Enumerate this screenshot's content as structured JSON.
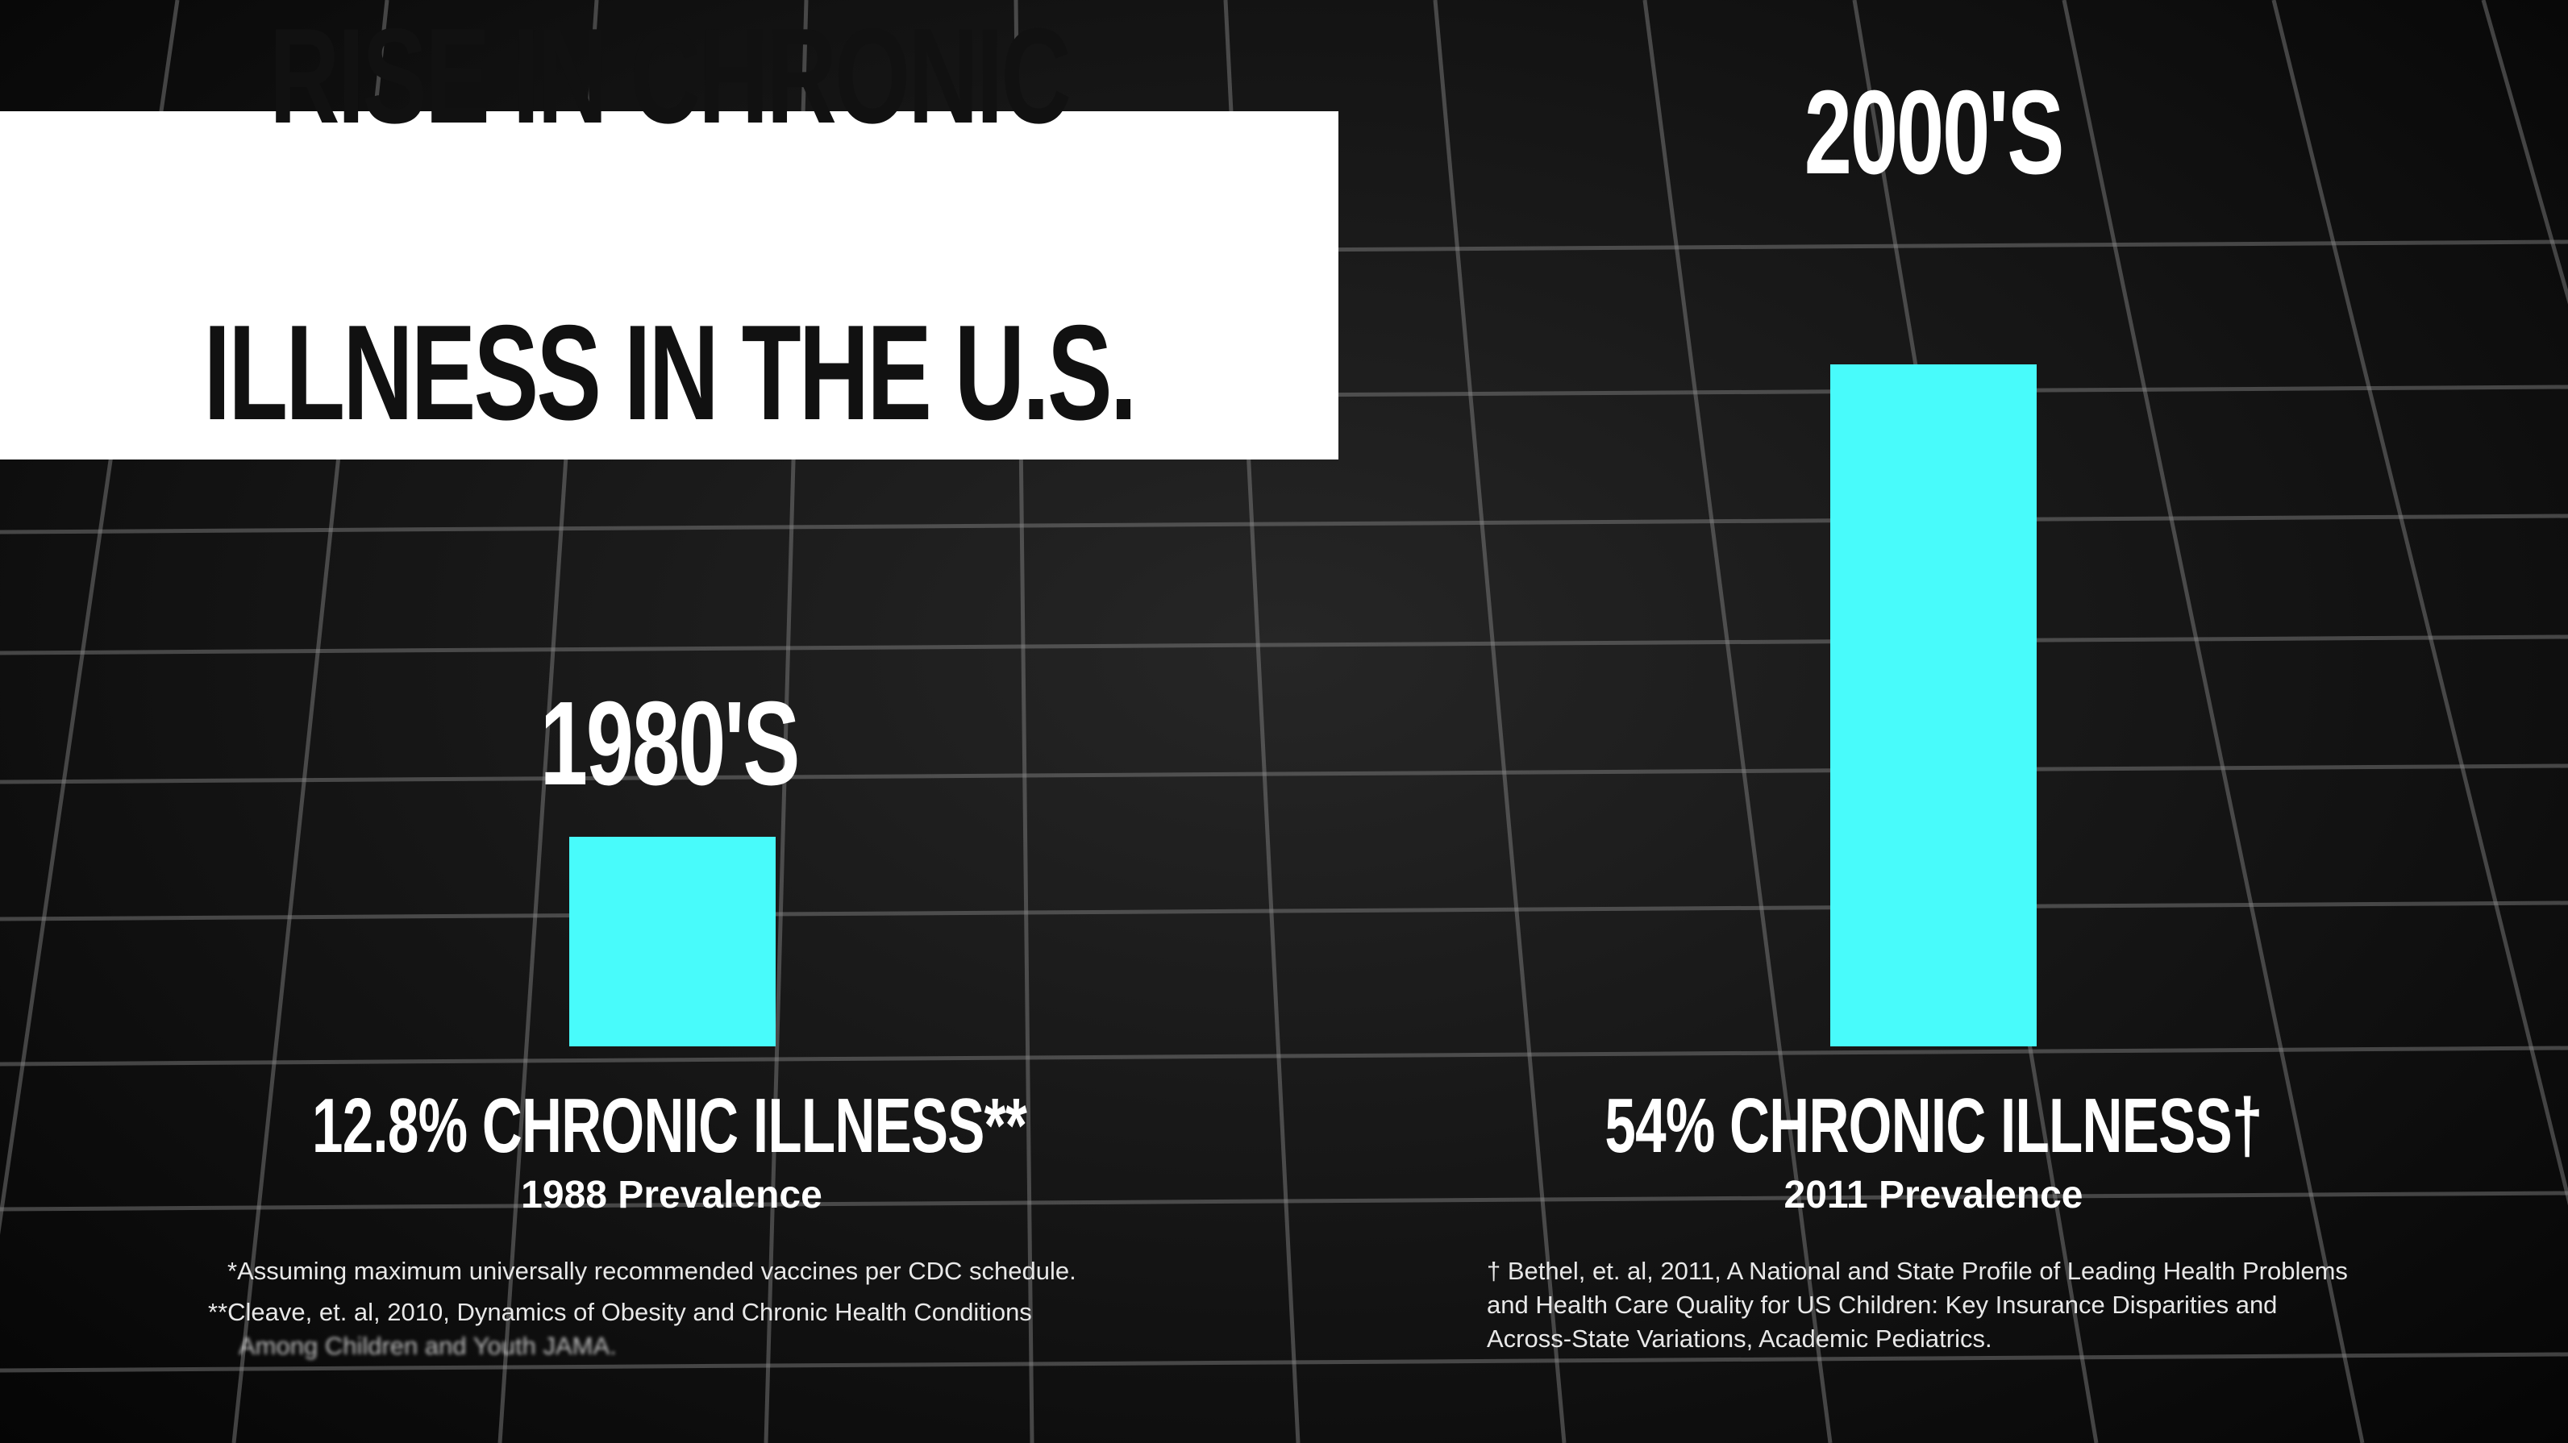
{
  "chart_data": {
    "type": "bar",
    "title": "RISE IN CHRONIC ILLNESS IN THE U.S.",
    "title_lines": [
      "RISE IN CHRONIC",
      "ILLNESS IN THE U.S."
    ],
    "categories": [
      "1980'S",
      "2000'S"
    ],
    "values": [
      12.8,
      54
    ],
    "unit": "%",
    "ylim": [
      0,
      54
    ],
    "value_labels": [
      "12.8% CHRONIC ILLNESS**",
      "54% CHRONIC ILLNESS†"
    ],
    "sublabels": [
      "1988 Prevalence",
      "2011 Prevalence"
    ],
    "bar_color": "#48fbfb",
    "grid": true,
    "footnotes_left": [
      "*Assuming maximum universally recommended vaccines per CDC schedule.",
      "**Cleave, et. al, 2010, Dynamics of Obesity and Chronic Health Conditions",
      "Among Children and Youth JAMA."
    ],
    "footnotes_right": [
      "† Bethel, et. al, 2011, A National and State Profile of Leading Health Problems",
      "and Health Care Quality for US Children: Key Insurance Disparities and",
      "Across-State Variations, Academic Pediatrics."
    ]
  }
}
